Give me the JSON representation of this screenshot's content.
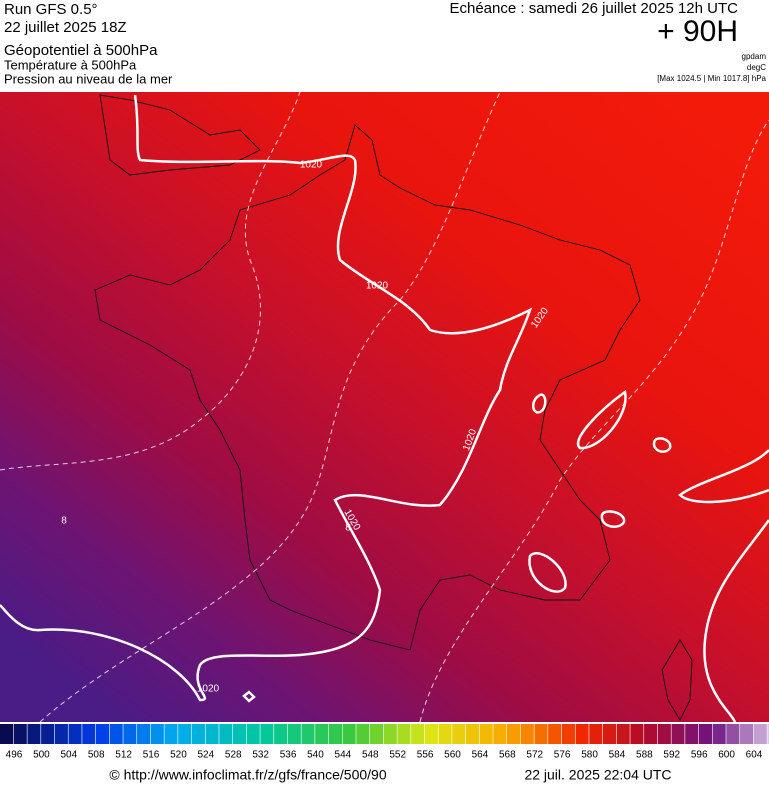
{
  "header": {
    "run": "Run GFS 0.5°",
    "run_date": "22 juillet 2025 18Z",
    "field_1": "Géopotentiel à 500hPa",
    "field_2": "Température à 500hPa",
    "field_3": "Pression au niveau de la mer",
    "valid_time": "Echéance : samedi 26 juillet 2025 12h UTC",
    "lead_time": "+ 90H",
    "unit_1": "gpdam",
    "unit_2": "degC",
    "range": "[Max 1024.5 | Min 1017.8] hPa"
  },
  "map": {
    "isobar_labels": [
      "1020",
      "1020",
      "1020",
      "1020",
      "1020",
      "1020"
    ],
    "isotherm_labels": [
      "8",
      "8"
    ]
  },
  "colorbar": {
    "labels": [
      496,
      500,
      504,
      508,
      512,
      516,
      520,
      524,
      528,
      532,
      536,
      540,
      544,
      548,
      552,
      556,
      560,
      564,
      568,
      572,
      576,
      580,
      584,
      588,
      592,
      596,
      600,
      604
    ]
  },
  "footer": {
    "source": "© http://www.infoclimat.fr/z/gfs/france/500/90",
    "generated": "22 juil. 2025 22:04 UTC"
  }
}
